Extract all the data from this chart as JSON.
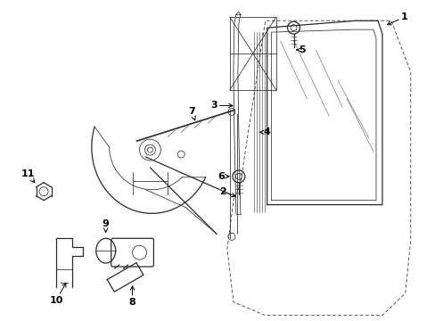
{
  "bg_color": "#ffffff",
  "line_color": "#2a2a2a",
  "label_color": "#000000",
  "lw_main": 0.9,
  "lw_thin": 0.55,
  "label_fs": 8
}
